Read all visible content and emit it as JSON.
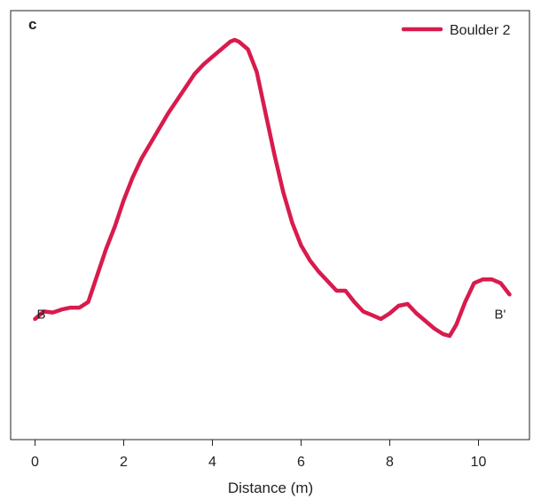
{
  "chart_data": {
    "type": "line",
    "panel_label": "c",
    "xlabel": "Distance (m)",
    "ylabel": "",
    "xlim": [
      -0.55,
      11.15
    ],
    "ylim": [
      0,
      1
    ],
    "x_ticks": [
      0,
      2,
      4,
      6,
      8,
      10
    ],
    "x_tick_labels": [
      "0",
      "2",
      "4",
      "6",
      "8",
      "10"
    ],
    "y_ticks": [],
    "grid": false,
    "legend_position": "top-right",
    "annotations": [
      {
        "text": "B",
        "x": 0.1,
        "y": 0.305
      },
      {
        "text": "B'",
        "x": 10.6,
        "y": 0.305
      }
    ],
    "series": [
      {
        "name": "Boulder 2",
        "color": "#d81b4d",
        "x": [
          0,
          0.2,
          0.4,
          0.6,
          0.8,
          1.0,
          1.2,
          1.4,
          1.6,
          1.8,
          2.0,
          2.2,
          2.4,
          2.6,
          2.8,
          3.0,
          3.2,
          3.4,
          3.6,
          3.8,
          4.0,
          4.2,
          4.4,
          4.5,
          4.6,
          4.8,
          5.0,
          5.2,
          5.4,
          5.6,
          5.8,
          6.0,
          6.2,
          6.4,
          6.6,
          6.8,
          7.0,
          7.2,
          7.4,
          7.6,
          7.8,
          8.0,
          8.2,
          8.4,
          8.6,
          8.8,
          9.0,
          9.2,
          9.35,
          9.5,
          9.7,
          9.9,
          10.1,
          10.3,
          10.5,
          10.7
        ],
        "y": [
          0.285,
          0.305,
          0.302,
          0.31,
          0.315,
          0.315,
          0.33,
          0.4,
          0.47,
          0.53,
          0.6,
          0.66,
          0.71,
          0.75,
          0.79,
          0.83,
          0.865,
          0.9,
          0.935,
          0.96,
          0.98,
          1.0,
          1.02,
          1.025,
          1.02,
          1.0,
          0.94,
          0.83,
          0.72,
          0.62,
          0.54,
          0.48,
          0.44,
          0.41,
          0.385,
          0.36,
          0.36,
          0.33,
          0.305,
          0.295,
          0.285,
          0.3,
          0.32,
          0.325,
          0.3,
          0.28,
          0.26,
          0.245,
          0.24,
          0.27,
          0.33,
          0.38,
          0.39,
          0.39,
          0.38,
          0.35
        ]
      }
    ]
  }
}
